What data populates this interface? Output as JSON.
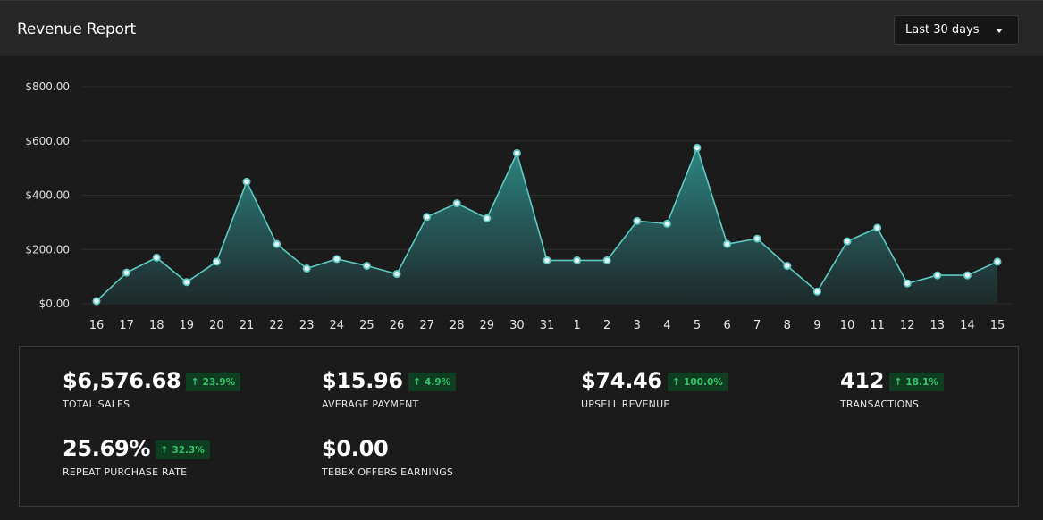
{
  "header": {
    "title": "Revenue Report",
    "range_label": "Last 30 days"
  },
  "chart_data": {
    "type": "area",
    "categories": [
      "16",
      "17",
      "18",
      "19",
      "20",
      "21",
      "22",
      "23",
      "24",
      "25",
      "26",
      "27",
      "28",
      "29",
      "30",
      "31",
      "1",
      "2",
      "3",
      "4",
      "5",
      "6",
      "7",
      "8",
      "9",
      "10",
      "11",
      "12",
      "13",
      "14",
      "15"
    ],
    "values": [
      10,
      115,
      170,
      80,
      155,
      450,
      220,
      130,
      165,
      140,
      110,
      320,
      370,
      315,
      555,
      160,
      160,
      160,
      305,
      295,
      575,
      220,
      240,
      140,
      45,
      230,
      280,
      75,
      105,
      105,
      155
    ],
    "ylim": [
      0,
      800
    ],
    "yticks": [
      "$0.00",
      "$200.00",
      "$400.00",
      "$600.00",
      "$800.00"
    ],
    "grid": true,
    "colors": {
      "line": "#5ec9c2",
      "fill_top": "#2e8c88",
      "fill_bottom": "#1e2b2b"
    }
  },
  "stats": [
    {
      "value": "$6,576.68",
      "change": "23.9%",
      "label": "TOTAL SALES"
    },
    {
      "value": "$15.96",
      "change": "4.9%",
      "label": "AVERAGE PAYMENT"
    },
    {
      "value": "$74.46",
      "change": "100.0%",
      "label": "UPSELL REVENUE"
    },
    {
      "value": "412",
      "change": "18.1%",
      "label": "TRANSACTIONS"
    },
    {
      "value": "25.69%",
      "change": "32.3%",
      "label": "REPEAT PURCHASE RATE"
    },
    {
      "value": "$0.00",
      "change": "",
      "label": "TEBEX OFFERS EARNINGS"
    }
  ]
}
